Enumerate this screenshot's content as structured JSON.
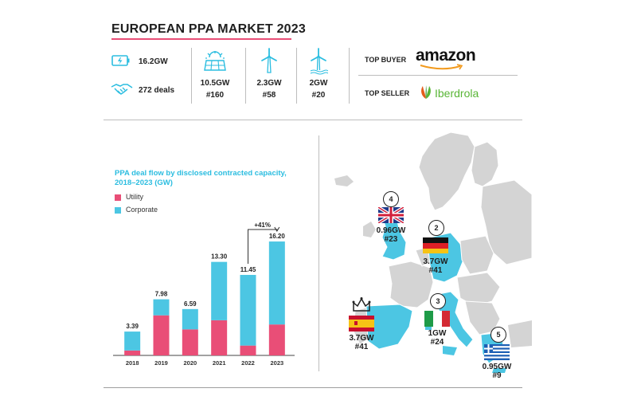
{
  "header": {
    "title": "EUROPEAN PPA MARKET 2023"
  },
  "stats": {
    "total_capacity": "16.2GW",
    "deals": "272 deals",
    "solar": {
      "capacity": "10.5GW",
      "deals": "#160"
    },
    "onshore_wind": {
      "capacity": "2.3GW",
      "deals": "#58"
    },
    "offshore_wind": {
      "capacity": "2GW",
      "deals": "#20"
    }
  },
  "top": {
    "buyer_label": "TOP BUYER",
    "buyer_name": "amazon",
    "seller_label": "TOP SELLER",
    "seller_name": "Iberdrola"
  },
  "icons": {
    "battery": "battery-icon",
    "handshake": "handshake-icon",
    "solar": "solar-panel-icon",
    "onshore": "wind-turbine-icon",
    "offshore": "offshore-wind-turbine-icon"
  },
  "colors": {
    "utility": "#e94e77",
    "corporate": "#4cc6e3",
    "map_land": "#d4d4d4",
    "map_highlight": "#4cc6e3",
    "accent": "#2bbde0"
  },
  "chart_data": {
    "type": "bar",
    "title": "PPA deal flow by disclosed contracted capacity, 2018–2023 (GW)",
    "categories": [
      "2018",
      "2019",
      "2020",
      "2021",
      "2022",
      "2023"
    ],
    "totals": [
      "3.39",
      "7.98",
      "6.59",
      "13.30",
      "11.45",
      "16.20"
    ],
    "series": [
      {
        "name": "Utility",
        "values": [
          0.7,
          5.7,
          3.7,
          5.0,
          1.4,
          4.4
        ]
      },
      {
        "name": "Corporate",
        "values": [
          2.69,
          2.28,
          2.89,
          8.3,
          10.05,
          11.8
        ]
      }
    ],
    "ylim": [
      0,
      17
    ],
    "annotation": "+41%",
    "legend_position": "top-left"
  },
  "map": {
    "countries": [
      {
        "rank": "4",
        "capacity": "0.96GW",
        "deals": "#23"
      },
      {
        "rank": "2",
        "capacity": "3.7GW",
        "deals": "#41"
      },
      {
        "rank": "3",
        "capacity": "1GW",
        "deals": "#24"
      },
      {
        "rank": "",
        "capacity": "3.7GW",
        "deals": "#41"
      },
      {
        "rank": "5",
        "capacity": "0.95GW",
        "deals": "#9"
      }
    ]
  }
}
